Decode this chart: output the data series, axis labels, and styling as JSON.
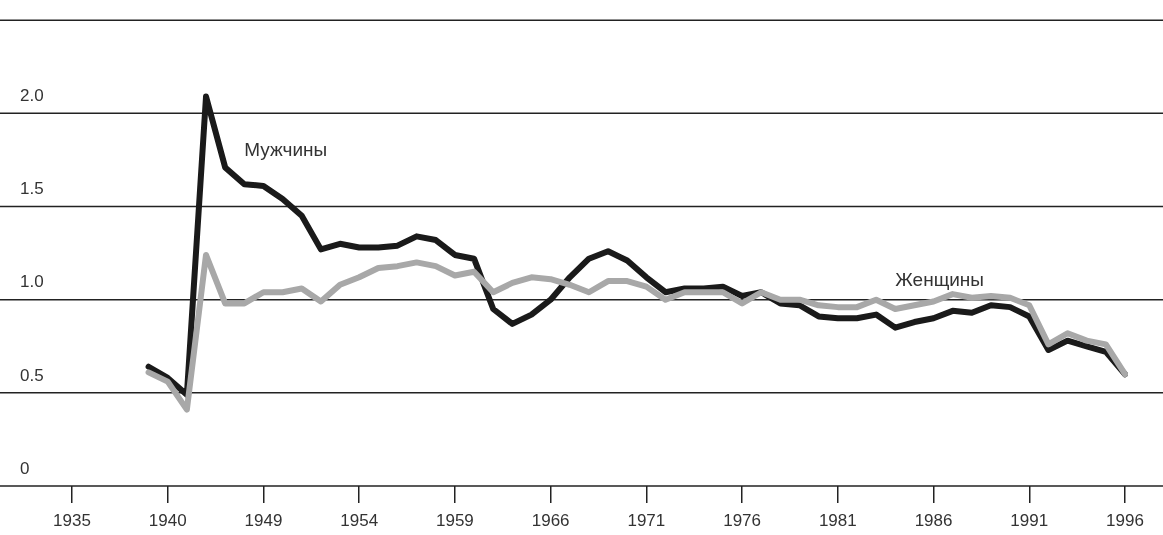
{
  "chart_data": {
    "type": "line",
    "categories": [
      "1935",
      null,
      null,
      null,
      null,
      "1940",
      null,
      null,
      null,
      null,
      "1949",
      null,
      null,
      null,
      null,
      "1954",
      null,
      null,
      null,
      null,
      "1959",
      null,
      null,
      null,
      null,
      "1966",
      null,
      null,
      null,
      null,
      "1971",
      null,
      null,
      null,
      null,
      "1976",
      null,
      null,
      null,
      null,
      "1981",
      null,
      null,
      null,
      null,
      "1986",
      null,
      null,
      null,
      null,
      "1991",
      null,
      null,
      null,
      null,
      "1996"
    ],
    "series": [
      {
        "name": "Мужчины",
        "color": "#1a1a1a",
        "values": [
          null,
          null,
          null,
          null,
          0.64,
          0.58,
          0.49,
          2.09,
          1.71,
          1.62,
          1.61,
          1.54,
          1.45,
          1.27,
          1.3,
          1.28,
          1.28,
          1.29,
          1.34,
          1.32,
          1.24,
          1.22,
          0.95,
          0.87,
          0.92,
          1.0,
          1.12,
          1.22,
          1.26,
          1.21,
          1.12,
          1.04,
          1.06,
          1.06,
          1.07,
          1.02,
          1.04,
          0.98,
          0.97,
          0.91,
          0.9,
          0.9,
          0.92,
          0.85,
          0.88,
          0.9,
          0.94,
          0.93,
          0.97,
          0.96,
          0.91,
          0.73,
          0.78,
          0.75,
          0.72,
          0.6
        ]
      },
      {
        "name": "Женщины",
        "color": "#a8a8a8",
        "values": [
          null,
          null,
          null,
          null,
          0.61,
          0.56,
          0.41,
          1.24,
          0.98,
          0.98,
          1.04,
          1.04,
          1.06,
          0.99,
          1.08,
          1.12,
          1.17,
          1.18,
          1.2,
          1.18,
          1.13,
          1.15,
          1.04,
          1.09,
          1.12,
          1.11,
          1.08,
          1.04,
          1.1,
          1.1,
          1.07,
          1.0,
          1.04,
          1.04,
          1.04,
          0.98,
          1.04,
          1.0,
          1.0,
          0.97,
          0.96,
          0.96,
          1.0,
          0.95,
          0.97,
          0.99,
          1.03,
          1.01,
          1.02,
          1.01,
          0.97,
          0.76,
          0.82,
          0.78,
          0.76,
          0.6
        ]
      }
    ],
    "ylim": [
      0,
      2.5
    ],
    "yticks": [
      0,
      0.5,
      {
        "value": 1,
        "label": "1.0"
      },
      {
        "value": 1.5,
        "label": "1.5"
      },
      {
        "value": 2,
        "label": "2.0"
      },
      {
        "value": 2.5,
        "label": null
      }
    ],
    "grid": "y",
    "legend": false,
    "marker": "none",
    "line_style": "solid"
  }
}
